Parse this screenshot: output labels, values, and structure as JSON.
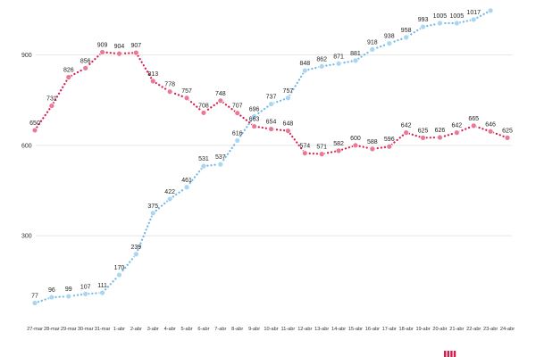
{
  "chart_data": {
    "type": "line",
    "categories": [
      "27-mar",
      "28-mar",
      "29-mar",
      "30-mar",
      "31-mar",
      "1-abr",
      "2-abr",
      "3-abr",
      "4-abr",
      "5-abr",
      "6-abr",
      "7-abr",
      "8-abr",
      "9-abr",
      "10-abr",
      "11-abr",
      "12-abr",
      "13-abr",
      "14-abr",
      "15-abr",
      "16-abr",
      "17-abr",
      "18-abr",
      "19-abr",
      "20-abr",
      "21-abr",
      "22-abr",
      "23-abr",
      "24-abr"
    ],
    "series": [
      {
        "values": [
          650,
          731,
          826,
          856,
          909,
          904,
          907,
          813,
          778,
          757,
          708,
          748,
          707,
          663,
          654,
          648,
          574,
          571,
          582,
          600,
          588,
          596,
          642,
          625,
          626,
          642,
          665,
          646,
          625
        ],
        "color": "#d61e4d",
        "marker_fill": "#e87a96",
        "line_style": "dotted"
      },
      {
        "values": [
          77,
          96,
          99,
          107,
          111,
          170,
          239,
          375,
          422,
          461,
          531,
          537,
          616,
          696,
          737,
          757,
          848,
          862,
          871,
          881,
          918,
          938,
          958,
          993,
          1005,
          1005,
          1017,
          1047,
          null
        ],
        "color": "#6fb8e6",
        "marker_fill": "#a9d6f2",
        "line_style": "dotted"
      }
    ],
    "yticks": [
      300,
      600,
      900
    ],
    "ylim": [
      0,
      1047
    ],
    "grid": true,
    "title": "",
    "xlabel": "",
    "ylabel": ""
  }
}
